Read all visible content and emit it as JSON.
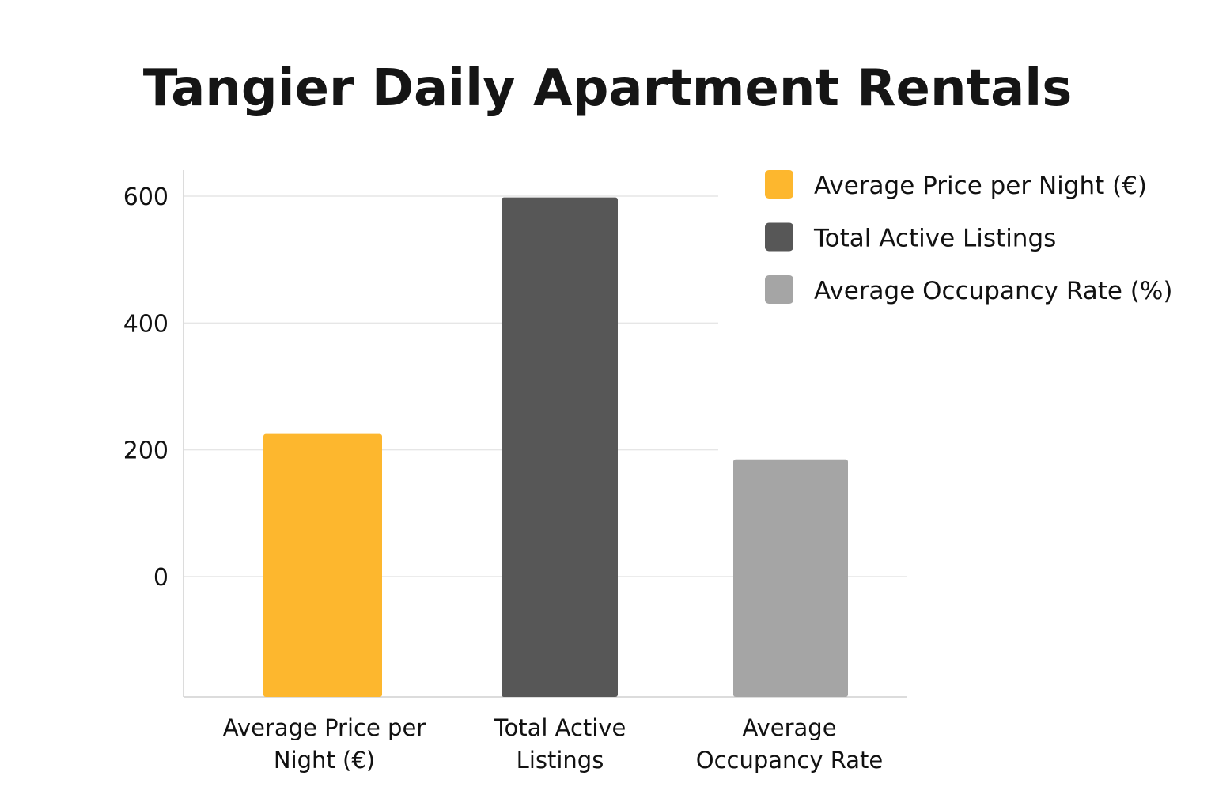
{
  "chart_data": {
    "type": "bar",
    "title": "Tangier Daily Apartment Rentals",
    "categories": [
      [
        "Average Price per",
        "Night (€)"
      ],
      [
        "Total Active",
        "Listings"
      ],
      [
        "Average",
        "Occupancy Rate"
      ]
    ],
    "values": [
      225,
      598,
      185
    ],
    "colors": [
      "#FDB72E",
      "#575757",
      "#A5A5A5"
    ],
    "ylim": [
      -190,
      600
    ],
    "yticks": [
      0,
      200,
      400,
      600
    ],
    "grid": true,
    "legend_position": "top-right",
    "legend": [
      {
        "label": "Average Price per Night (€)",
        "color": "#FDB72E"
      },
      {
        "label": "Total Active Listings",
        "color": "#575757"
      },
      {
        "label": "Average Occupancy Rate (%)",
        "color": "#A5A5A5"
      }
    ],
    "xlabel": "",
    "ylabel": ""
  }
}
